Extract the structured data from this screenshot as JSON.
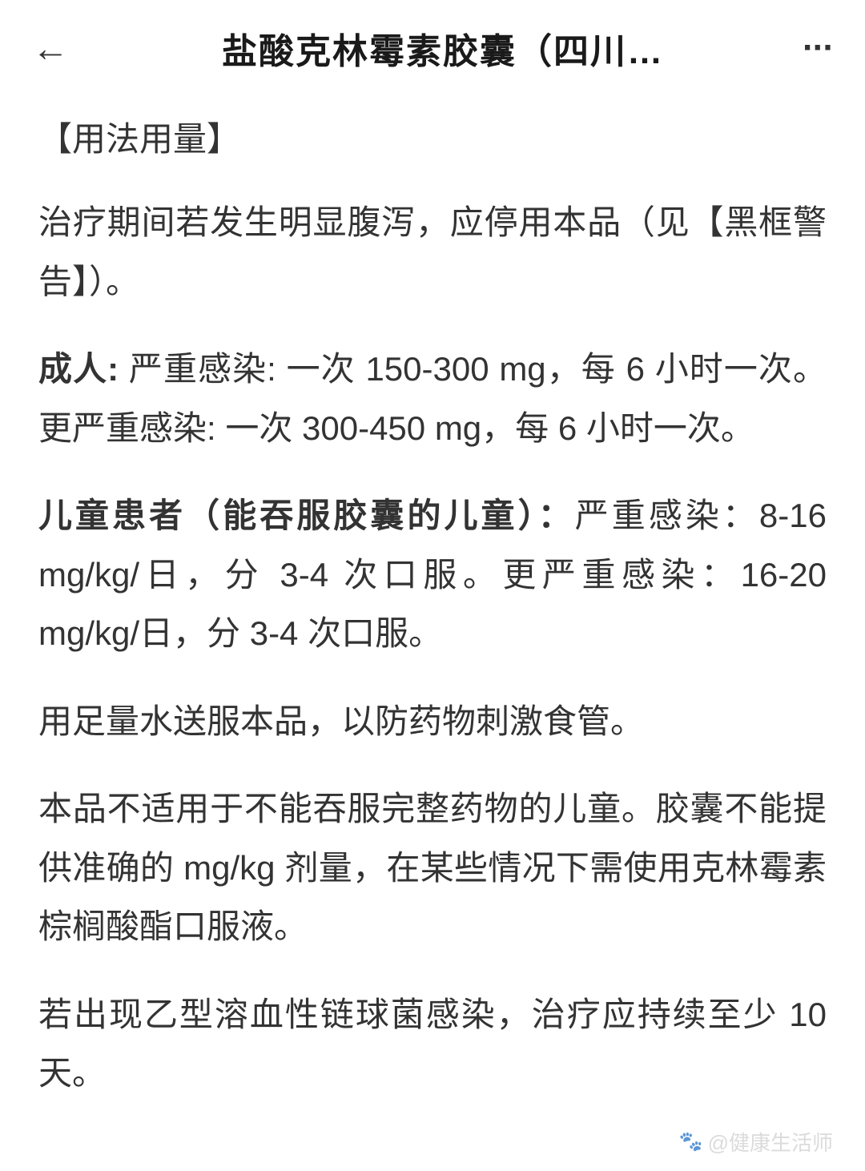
{
  "header": {
    "title": "盐酸克林霉素胶囊（四川…"
  },
  "content": {
    "section_title": "【用法用量】",
    "paragraph1": "治疗期间若发生明显腹泻，应停用本品（见【黑框警告】）。",
    "adult_label": "成人:",
    "adult_text": " 严重感染: 一次 150-300 mg，每 6 小时一次。更严重感染: 一次 300-450 mg，每 6 小时一次。",
    "child_label": "儿童患者（能吞服胶囊的儿童）：",
    "child_text": "严重感染：8-16 mg/kg/日，分 3-4 次口服。更严重感染：16-20 mg/kg/日，分 3-4 次口服。",
    "paragraph4": "用足量水送服本品，以防药物刺激食管。",
    "paragraph5": "本品不适用于不能吞服完整药物的儿童。胶囊不能提供准确的 mg/kg 剂量，在某些情况下需使用克林霉素棕榈酸酯口服液。",
    "paragraph6": "若出现乙型溶血性链球菌感染，治疗应持续至少 10 天。"
  },
  "watermark": {
    "text": "@健康生活师"
  },
  "colors": {
    "background": "#ffffff",
    "text": "#333333",
    "title": "#1a1a1a",
    "watermark": "#cccccc"
  },
  "typography": {
    "title_fontsize": 44,
    "body_fontsize": 42,
    "watermark_fontsize": 26,
    "line_height": 1.75
  }
}
